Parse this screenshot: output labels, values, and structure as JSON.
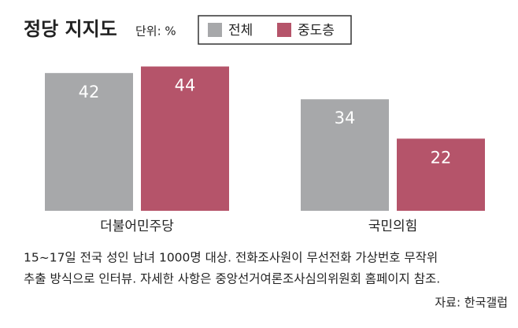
{
  "chart_data": {
    "type": "bar",
    "title": "정당 지지도",
    "subtitle": "단위: %",
    "categories": [
      "더불어민주당",
      "국민의힘"
    ],
    "series": [
      {
        "name": "전체",
        "color": "#a7a8aa",
        "values": [
          42,
          34
        ]
      },
      {
        "name": "중도층",
        "color": "#b5546a",
        "values": [
          44,
          22
        ]
      }
    ],
    "note": [
      "15~17일 전국 성인 남녀 1000명 대상. 전화조사원이 무선전화 가상번호 무작위",
      "추출 방식으로 인터뷰. 자세한 사항은 중앙선거여론조사심의위원회 홈페이지 참조."
    ],
    "source": "자료: 한국갤럽"
  }
}
